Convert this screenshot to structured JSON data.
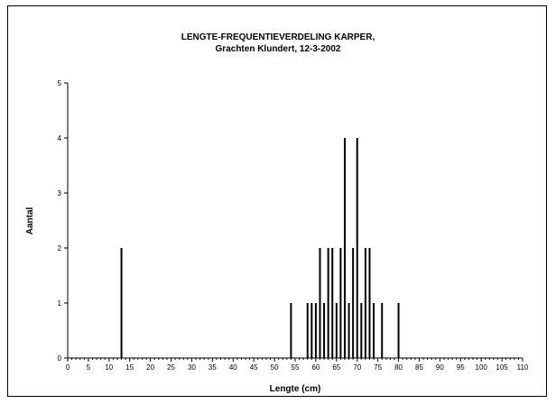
{
  "chart_data": {
    "type": "bar",
    "title": "LENGTE-FREQUENTIEVERDELING KARPER,",
    "subtitle": "Grachten Klundert, 12-3-2002",
    "xlabel": "Lengte (cm)",
    "ylabel": "Aantal",
    "xlim": [
      0,
      110
    ],
    "ylim": [
      0,
      5
    ],
    "xticks": [
      0,
      5,
      10,
      15,
      20,
      25,
      30,
      35,
      40,
      45,
      50,
      55,
      60,
      65,
      70,
      75,
      80,
      85,
      90,
      95,
      100,
      105,
      110
    ],
    "yticks": [
      0,
      1,
      2,
      3,
      4,
      5
    ],
    "x": [
      13,
      54,
      58,
      59,
      60,
      61,
      62,
      63,
      64,
      65,
      66,
      67,
      68,
      69,
      70,
      71,
      72,
      73,
      74,
      76,
      80
    ],
    "values": [
      2,
      1,
      1,
      1,
      1,
      2,
      1,
      2,
      2,
      1,
      2,
      4,
      1,
      2,
      4,
      1,
      2,
      2,
      1,
      1,
      1
    ],
    "grid": false,
    "legend": "none"
  }
}
